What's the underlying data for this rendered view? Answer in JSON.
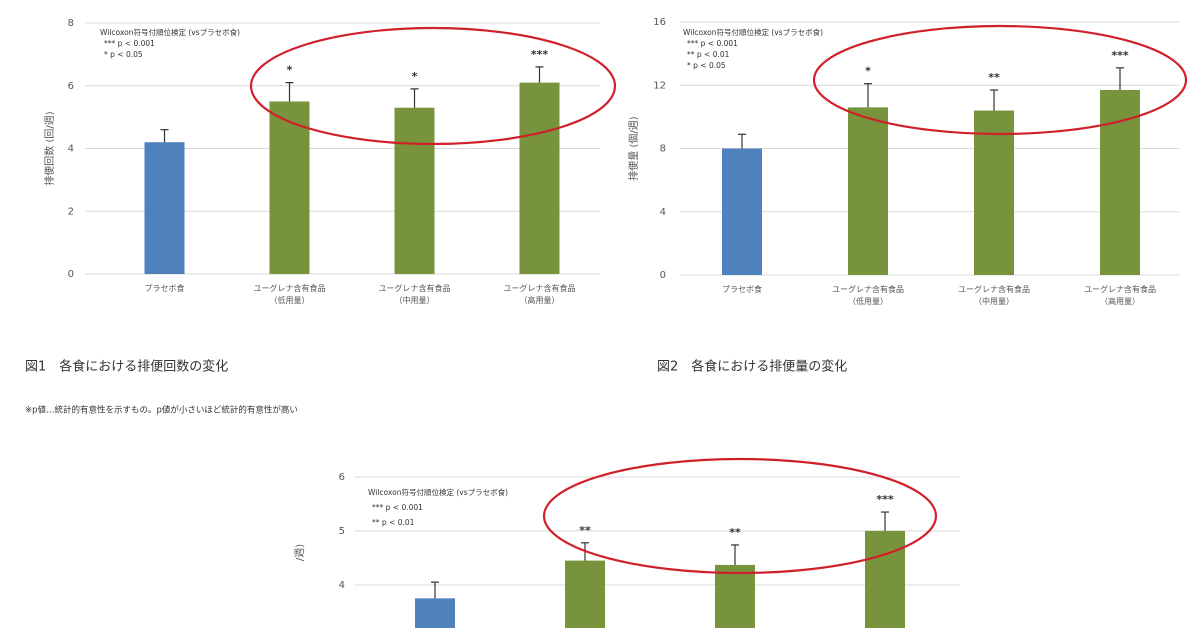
{
  "chart_data": [
    {
      "type": "bar",
      "y_label": "排便回数 (回/週)",
      "categories": [
        [
          "プラセボ食"
        ],
        [
          "ユーグレナ含有食品",
          "（低用量）"
        ],
        [
          "ユーグレナ含有食品",
          "（中用量）"
        ],
        [
          "ユーグレナ含有食品",
          "（高用量）"
        ]
      ],
      "values": [
        4.2,
        5.5,
        5.3,
        6.1
      ],
      "errors": [
        0.4,
        0.6,
        0.6,
        0.5
      ],
      "significance": [
        "*",
        "*",
        "***"
      ],
      "colors": [
        "#4f81bd",
        "#77933c",
        "#77933c",
        "#77933c"
      ],
      "test_note": [
        "Wilcoxon符号付順位検定 (vsプラセボ食)",
        "*** p < 0.001",
        "* p < 0.05"
      ],
      "ylim": [
        0,
        8
      ],
      "yticks": [
        0,
        2,
        4,
        6,
        8
      ],
      "grid": true,
      "caption": "図1　各食における排便回数の変化"
    },
    {
      "type": "bar",
      "y_label": "排便量 (個/週)",
      "categories": [
        [
          "プラセボ食"
        ],
        [
          "ユーグレナ含有食品",
          "（低用量）"
        ],
        [
          "ユーグレナ含有食品",
          "（中用量）"
        ],
        [
          "ユーグレナ含有食品",
          "（高用量）"
        ]
      ],
      "values": [
        8.0,
        10.6,
        10.4,
        11.7
      ],
      "errors": [
        0.9,
        1.5,
        1.3,
        1.4
      ],
      "significance": [
        "*",
        "**",
        "***"
      ],
      "colors": [
        "#4f81bd",
        "#77933c",
        "#77933c",
        "#77933c"
      ],
      "test_note": [
        "Wilcoxon符号付順位検定 (vsプラセボ食)",
        "*** p < 0.001",
        "** p < 0.01",
        "* p < 0.05"
      ],
      "ylim": [
        0,
        16
      ],
      "yticks": [
        0,
        4,
        8,
        12,
        16
      ],
      "grid": true,
      "caption": "図2　各食における排便量の変化"
    },
    {
      "type": "bar",
      "y_label": "/週)",
      "values": [
        3.75,
        4.45,
        4.37,
        5.0
      ],
      "errors": [
        0.3,
        0.33,
        0.37,
        0.35
      ],
      "significance": [
        "**",
        "**",
        "***"
      ],
      "colors": [
        "#4f81bd",
        "#77933c",
        "#77933c",
        "#77933c"
      ],
      "test_note": [
        "Wilcoxon符号付順位検定 (vsプラセボ食)",
        "*** p < 0.001",
        "** p < 0.01"
      ],
      "ylim": [
        3.2,
        6
      ],
      "yticks": [
        4,
        5,
        6
      ],
      "grid": true
    }
  ],
  "footnote": "※p値…統計的有意性を示すもの。p値が小さいほど統計的有意性が高い"
}
